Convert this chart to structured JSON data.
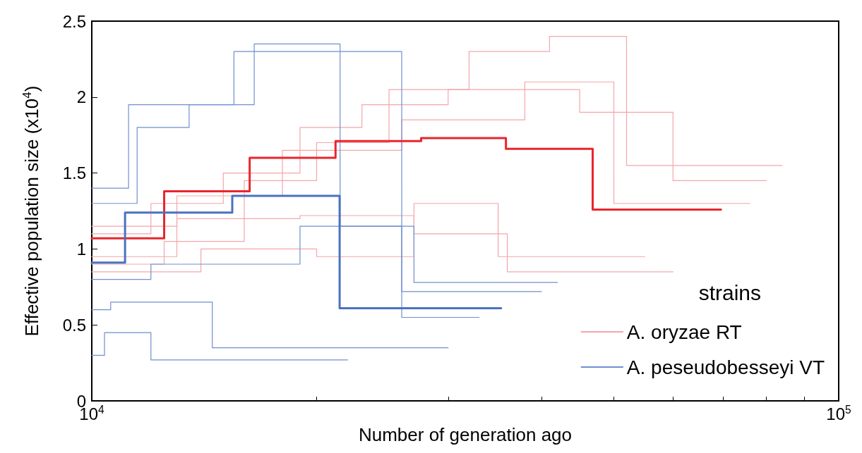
{
  "chart_data": {
    "type": "step",
    "xlabel": "Number of generation ago",
    "ylabel": "Effective population size (x10$^{4}$)",
    "legend_title": "strains",
    "legend": "bottom right",
    "log": "x",
    "grid": false,
    "xlim": [
      10000,
      100000
    ],
    "xticks": [
      {
        "value": 10000,
        "label": "10$^{4}$"
      },
      {
        "value": 20000,
        "label": null
      },
      {
        "value": 30000,
        "label": null
      },
      {
        "value": 40000,
        "label": null
      },
      {
        "value": 50000,
        "label": null
      },
      {
        "value": 60000,
        "label": null
      },
      {
        "value": 70000,
        "label": null
      },
      {
        "value": 80000,
        "label": null
      },
      {
        "value": 90000,
        "label": null
      },
      {
        "value": 100000,
        "label": "10$^{5}$"
      }
    ],
    "ylim": [
      0,
      2.5
    ],
    "yticks": [
      0,
      0.5,
      1,
      1.5,
      2,
      2.5
    ],
    "series": [
      {
        "color": "#e8262d",
        "x": [
          10000,
          12500,
          16270,
          21200,
          27600,
          35850,
          46840,
          69560
        ],
        "values": [
          1.07,
          1.38,
          1.6,
          1.71,
          1.73,
          1.66,
          1.26,
          1.26
        ]
      },
      {
        "color": "#4a72c0",
        "x": [
          10000,
          11080,
          15420,
          21470,
          35320
        ],
        "values": [
          0.91,
          1.24,
          1.35,
          0.61,
          0.61
        ]
      },
      {
        "name": "A. oryzae RT",
        "color": "#f4a6ab",
        "x": [
          10000,
          13000,
          16000,
          20000,
          25000,
          32000,
          41000,
          52000,
          84000
        ],
        "values": [
          0.95,
          1.2,
          1.45,
          1.7,
          2.05,
          2.3,
          2.4,
          1.55,
          1.55
        ]
      },
      {
        "color": "#f4a6ab",
        "x": [
          10000,
          12000,
          15000,
          19000,
          23000,
          30000,
          45000,
          60000,
          80000
        ],
        "values": [
          1.1,
          1.3,
          1.5,
          1.8,
          1.95,
          2.05,
          1.9,
          1.45,
          1.45
        ]
      },
      {
        "color": "#f4a6ab",
        "x": [
          10000,
          12500,
          16000,
          19000,
          27000,
          36000,
          60000
        ],
        "values": [
          0.9,
          1.05,
          1.2,
          1.22,
          1.1,
          0.85,
          0.85
        ]
      },
      {
        "color": "#f4a6ab",
        "x": [
          10000,
          13000,
          18000,
          26000,
          38000,
          50000,
          76000
        ],
        "values": [
          1.15,
          1.35,
          1.65,
          1.85,
          2.1,
          1.3,
          1.3
        ]
      },
      {
        "color": "#f4a6ab",
        "x": [
          10000,
          14000,
          20000,
          27000,
          35000,
          55000
        ],
        "values": [
          0.85,
          1.0,
          0.95,
          1.3,
          0.95,
          0.95
        ]
      },
      {
        "name": "A. peseudobesseyi VT",
        "color": "#6f8fcf",
        "x": [
          10000,
          11200,
          16500,
          21500,
          27000,
          42000
        ],
        "values": [
          1.4,
          1.95,
          2.35,
          1.15,
          0.78,
          0.78
        ]
      },
      {
        "color": "#6f8fcf",
        "x": [
          10000,
          11500,
          13500,
          15500,
          26000,
          40000
        ],
        "values": [
          1.3,
          1.8,
          1.95,
          2.3,
          0.72,
          0.72
        ]
      },
      {
        "color": "#6f8fcf",
        "x": [
          10000,
          10600,
          14500,
          30000
        ],
        "values": [
          0.6,
          0.65,
          0.35,
          0.35
        ]
      },
      {
        "color": "#6f8fcf",
        "x": [
          10000,
          10400,
          12000,
          22000
        ],
        "values": [
          0.3,
          0.45,
          0.27,
          0.27
        ]
      },
      {
        "color": "#6f8fcf",
        "x": [
          10000,
          12000,
          19000,
          26000,
          33000
        ],
        "values": [
          0.8,
          0.9,
          1.15,
          0.55,
          0.55
        ]
      }
    ]
  }
}
